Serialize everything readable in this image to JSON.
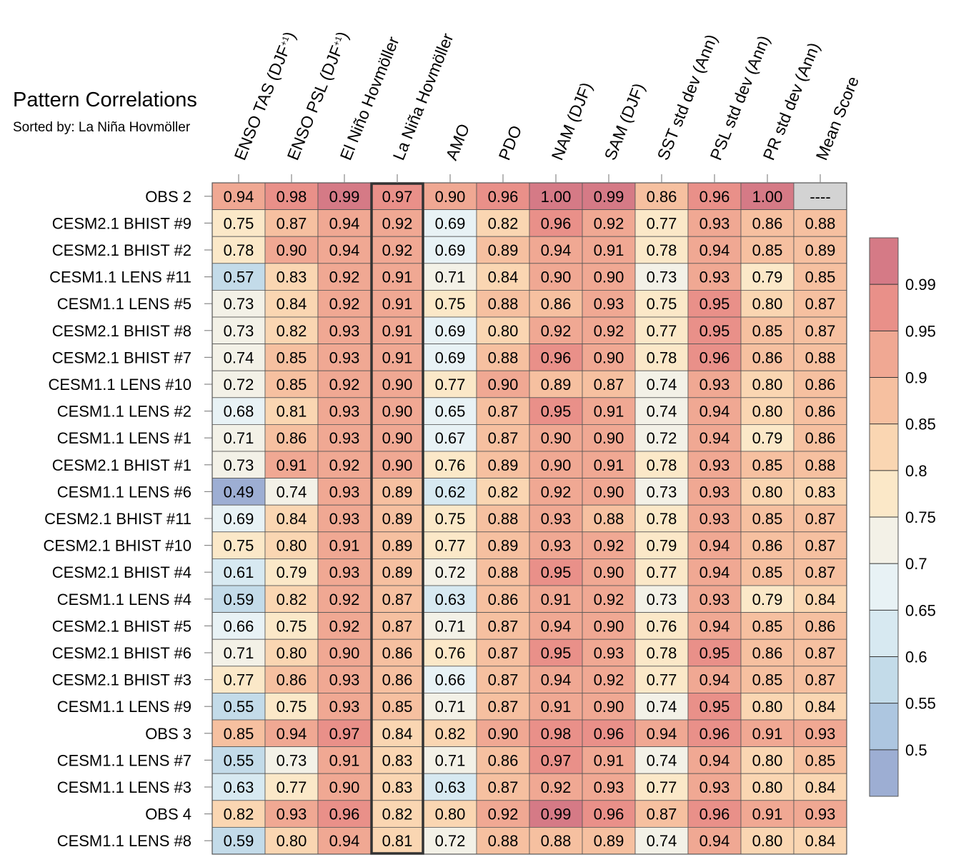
{
  "chart_data": {
    "type": "heatmap",
    "title": "Pattern Correlations",
    "subtitle": "Sorted by: La Niña Hovmöller",
    "columns": [
      {
        "text": "ENSO TAS (DJF",
        "sup": "+1",
        "close": ")"
      },
      {
        "text": "ENSO PSL (DJF",
        "sup": "+1",
        "close": ")"
      },
      {
        "text": "El Niño Hovmöller"
      },
      {
        "text": "La Niña Hovmöller"
      },
      {
        "text": "AMO"
      },
      {
        "text": "PDO"
      },
      {
        "text": "NAM (DJF)"
      },
      {
        "text": "SAM (DJF)"
      },
      {
        "text": "SST std dev (Ann)"
      },
      {
        "text": "PSL std dev (Ann)"
      },
      {
        "text": "PR std dev (Ann)"
      },
      {
        "text": "Mean Score"
      }
    ],
    "sorted_column": 3,
    "rows": [
      {
        "label": "OBS 2",
        "values": [
          0.94,
          0.98,
          0.99,
          0.97,
          0.9,
          0.96,
          1.0,
          0.99,
          0.86,
          0.96,
          1.0,
          null
        ]
      },
      {
        "label": "CESM2.1 BHIST #9",
        "values": [
          0.75,
          0.87,
          0.94,
          0.92,
          0.69,
          0.82,
          0.96,
          0.92,
          0.77,
          0.93,
          0.86,
          0.88
        ]
      },
      {
        "label": "CESM2.1 BHIST #2",
        "values": [
          0.78,
          0.9,
          0.94,
          0.92,
          0.69,
          0.89,
          0.94,
          0.91,
          0.78,
          0.94,
          0.85,
          0.89
        ]
      },
      {
        "label": "CESM1.1 LENS #11",
        "values": [
          0.57,
          0.83,
          0.92,
          0.91,
          0.71,
          0.84,
          0.9,
          0.9,
          0.73,
          0.93,
          0.79,
          0.85
        ]
      },
      {
        "label": "CESM1.1 LENS #5",
        "values": [
          0.73,
          0.84,
          0.92,
          0.91,
          0.75,
          0.88,
          0.86,
          0.93,
          0.75,
          0.95,
          0.8,
          0.87
        ]
      },
      {
        "label": "CESM2.1 BHIST #8",
        "values": [
          0.73,
          0.82,
          0.93,
          0.91,
          0.69,
          0.8,
          0.92,
          0.92,
          0.77,
          0.95,
          0.85,
          0.87
        ]
      },
      {
        "label": "CESM2.1 BHIST #7",
        "values": [
          0.74,
          0.85,
          0.93,
          0.91,
          0.69,
          0.88,
          0.96,
          0.9,
          0.78,
          0.96,
          0.86,
          0.88
        ]
      },
      {
        "label": "CESM1.1 LENS #10",
        "values": [
          0.72,
          0.85,
          0.92,
          0.9,
          0.77,
          0.9,
          0.89,
          0.87,
          0.74,
          0.93,
          0.8,
          0.86
        ]
      },
      {
        "label": "CESM1.1 LENS #2",
        "values": [
          0.68,
          0.81,
          0.93,
          0.9,
          0.65,
          0.87,
          0.95,
          0.91,
          0.74,
          0.94,
          0.8,
          0.86
        ]
      },
      {
        "label": "CESM1.1 LENS #1",
        "values": [
          0.71,
          0.86,
          0.93,
          0.9,
          0.67,
          0.87,
          0.9,
          0.9,
          0.72,
          0.94,
          0.79,
          0.86
        ]
      },
      {
        "label": "CESM2.1 BHIST #1",
        "values": [
          0.73,
          0.91,
          0.92,
          0.9,
          0.76,
          0.89,
          0.9,
          0.91,
          0.78,
          0.93,
          0.85,
          0.88
        ]
      },
      {
        "label": "CESM1.1 LENS #6",
        "values": [
          0.49,
          0.74,
          0.93,
          0.89,
          0.62,
          0.82,
          0.92,
          0.9,
          0.73,
          0.93,
          0.8,
          0.83
        ]
      },
      {
        "label": "CESM2.1 BHIST #11",
        "values": [
          0.69,
          0.84,
          0.93,
          0.89,
          0.75,
          0.88,
          0.93,
          0.88,
          0.78,
          0.93,
          0.85,
          0.87
        ]
      },
      {
        "label": "CESM2.1 BHIST #10",
        "values": [
          0.75,
          0.8,
          0.91,
          0.89,
          0.77,
          0.89,
          0.93,
          0.92,
          0.79,
          0.94,
          0.86,
          0.87
        ]
      },
      {
        "label": "CESM2.1 BHIST #4",
        "values": [
          0.61,
          0.79,
          0.93,
          0.89,
          0.72,
          0.88,
          0.95,
          0.9,
          0.77,
          0.94,
          0.85,
          0.87
        ]
      },
      {
        "label": "CESM1.1 LENS #4",
        "values": [
          0.59,
          0.82,
          0.92,
          0.87,
          0.63,
          0.86,
          0.91,
          0.92,
          0.73,
          0.93,
          0.79,
          0.84
        ]
      },
      {
        "label": "CESM2.1 BHIST #5",
        "values": [
          0.66,
          0.75,
          0.92,
          0.87,
          0.71,
          0.87,
          0.94,
          0.9,
          0.76,
          0.94,
          0.85,
          0.86
        ]
      },
      {
        "label": "CESM2.1 BHIST #6",
        "values": [
          0.71,
          0.8,
          0.9,
          0.86,
          0.76,
          0.87,
          0.95,
          0.93,
          0.78,
          0.95,
          0.86,
          0.87
        ]
      },
      {
        "label": "CESM2.1 BHIST #3",
        "values": [
          0.77,
          0.86,
          0.93,
          0.86,
          0.66,
          0.87,
          0.94,
          0.92,
          0.77,
          0.94,
          0.85,
          0.87
        ]
      },
      {
        "label": "CESM1.1 LENS #9",
        "values": [
          0.55,
          0.75,
          0.93,
          0.85,
          0.71,
          0.87,
          0.91,
          0.9,
          0.74,
          0.95,
          0.8,
          0.84
        ]
      },
      {
        "label": "OBS 3",
        "values": [
          0.85,
          0.94,
          0.97,
          0.84,
          0.82,
          0.9,
          0.98,
          0.96,
          0.94,
          0.96,
          0.91,
          0.93
        ]
      },
      {
        "label": "CESM1.1 LENS #7",
        "values": [
          0.55,
          0.73,
          0.91,
          0.83,
          0.71,
          0.86,
          0.97,
          0.91,
          0.74,
          0.94,
          0.8,
          0.85
        ]
      },
      {
        "label": "CESM1.1 LENS #3",
        "values": [
          0.63,
          0.77,
          0.9,
          0.83,
          0.63,
          0.87,
          0.92,
          0.93,
          0.77,
          0.93,
          0.8,
          0.84
        ]
      },
      {
        "label": "OBS 4",
        "values": [
          0.82,
          0.93,
          0.96,
          0.82,
          0.8,
          0.92,
          0.99,
          0.96,
          0.87,
          0.96,
          0.91,
          0.93
        ]
      },
      {
        "label": "CESM1.1 LENS #8",
        "values": [
          0.59,
          0.8,
          0.94,
          0.81,
          0.72,
          0.88,
          0.88,
          0.89,
          0.74,
          0.94,
          0.8,
          0.84
        ]
      }
    ],
    "missing_label": "----",
    "missing_color": "#d3d3d3",
    "colorbar": {
      "levels": [
        0.5,
        0.55,
        0.6,
        0.65,
        0.7,
        0.75,
        0.8,
        0.85,
        0.9,
        0.95,
        0.99
      ],
      "tick_labels": [
        "0.5",
        "0.55",
        "0.6",
        "0.65",
        "0.7",
        "0.75",
        "0.8",
        "0.85",
        "0.9",
        "0.95",
        "0.99"
      ],
      "colors": [
        "#9daed3",
        "#adc6e0",
        "#c3dbe9",
        "#d7e9f1",
        "#e8f2f5",
        "#f3f1e7",
        "#fbe8c8",
        "#fad6b2",
        "#f6c0a0",
        "#f0a893",
        "#e99089",
        "#d57a86"
      ]
    }
  }
}
